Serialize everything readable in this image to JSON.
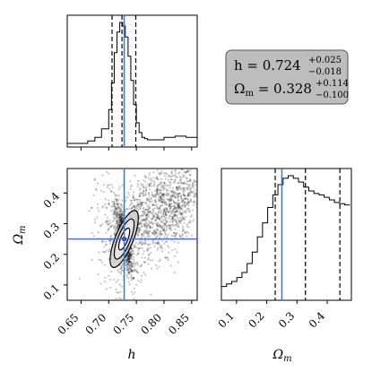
{
  "chart_data": {
    "type": "corner",
    "truth_color": "#4c72c7",
    "parameters": [
      {
        "name": "h",
        "label": "h",
        "range": [
          0.625,
          0.86
        ],
        "ticks": [
          "0.65",
          "0.70",
          "0.75",
          "0.80",
          "0.85"
        ],
        "truth": 0.728
      },
      {
        "name": "omega_m",
        "label": "Ω",
        "label_sub": "m",
        "range": [
          0.05,
          0.48
        ],
        "ticks": [
          "0.1",
          "0.2",
          "0.3",
          "0.4"
        ],
        "truth": 0.25
      }
    ],
    "histograms": [
      {
        "param": "h",
        "bins_x": [
          0.625,
          0.637,
          0.65,
          0.662,
          0.675,
          0.687,
          0.7,
          0.705,
          0.71,
          0.715,
          0.72,
          0.725,
          0.73,
          0.735,
          0.74,
          0.745,
          0.75,
          0.755,
          0.76,
          0.765,
          0.77,
          0.78,
          0.8,
          0.82,
          0.84,
          0.86
        ],
        "heights": [
          0,
          0,
          0,
          0.02,
          0.05,
          0.12,
          0.28,
          0.5,
          0.75,
          0.92,
          1.0,
          0.97,
          0.88,
          0.72,
          0.52,
          0.32,
          0.17,
          0.09,
          0.05,
          0.04,
          0.03,
          0.03,
          0.05,
          0.06,
          0.05
        ],
        "quantiles": [
          0.724,
          0.706,
          0.749
        ]
      },
      {
        "param": "omega_m",
        "bins_x": [
          0.05,
          0.067,
          0.084,
          0.101,
          0.118,
          0.135,
          0.152,
          0.169,
          0.186,
          0.203,
          0.22,
          0.237,
          0.254,
          0.271,
          0.288,
          0.305,
          0.322,
          0.339,
          0.356,
          0.373,
          0.39,
          0.407,
          0.424,
          0.441,
          0.458,
          0.475
        ],
        "heights": [
          0.08,
          0.1,
          0.12,
          0.15,
          0.19,
          0.26,
          0.35,
          0.47,
          0.58,
          0.7,
          0.8,
          0.88,
          0.93,
          0.95,
          0.93,
          0.9,
          0.86,
          0.83,
          0.81,
          0.8,
          0.78,
          0.76,
          0.74,
          0.73,
          0.72
        ],
        "quantiles": [
          0.328,
          0.228,
          0.442
        ]
      }
    ],
    "joint": {
      "x_param": "h",
      "y_param": "omega_m",
      "contour_center": [
        0.728,
        0.25
      ],
      "blobs": [
        {
          "cx": 0.728,
          "cy": 0.25,
          "sx": 0.008,
          "sy": 0.06,
          "rho": -0.85,
          "n": 700
        },
        {
          "cx": 0.76,
          "cy": 0.33,
          "sx": 0.03,
          "sy": 0.09,
          "rho": 0.65,
          "n": 600
        },
        {
          "cx": 0.8,
          "cy": 0.33,
          "sx": 0.025,
          "sy": 0.08,
          "rho": 0.6,
          "n": 500
        },
        {
          "cx": 0.835,
          "cy": 0.36,
          "sx": 0.015,
          "sy": 0.07,
          "rho": 0.5,
          "n": 250
        },
        {
          "cx": 0.71,
          "cy": 0.27,
          "sx": 0.02,
          "sy": 0.09,
          "rho": -0.4,
          "n": 250
        }
      ]
    },
    "stats": {
      "line1_main": "h = 0.724",
      "line1_sup": "+0.025",
      "line1_sub": "−0.018",
      "line2_main": "Ω",
      "line2_main_sub": "m",
      "line2_eq": " = 0.328",
      "line2_sup": "+0.114",
      "line2_sub": "−0.100"
    }
  }
}
